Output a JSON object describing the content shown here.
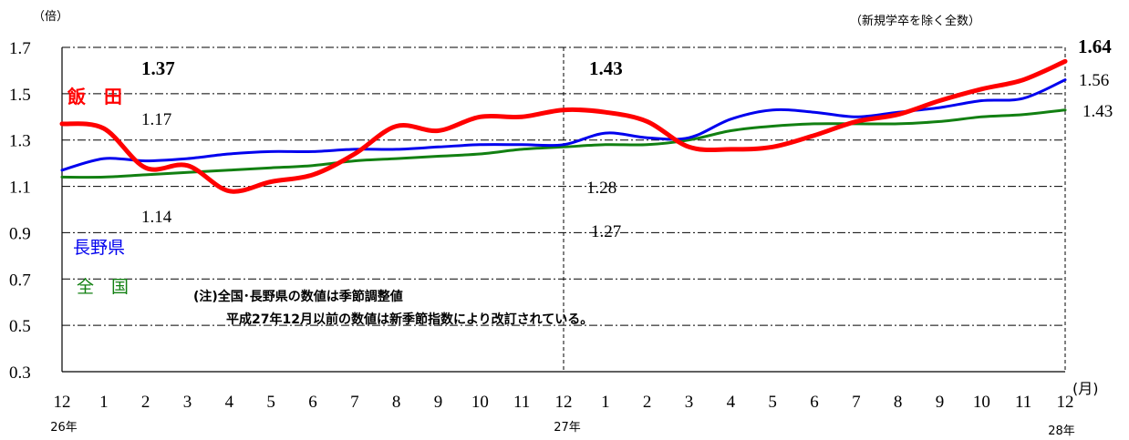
{
  "chart_data": {
    "type": "line",
    "y_unit": "（倍）",
    "note_top_right": "（新規学卒を除く全数）",
    "x_unit": "(月)",
    "ylim": [
      0.3,
      1.7
    ],
    "y_ticks": [
      "0.3",
      "0.5",
      "0.7",
      "0.9",
      "1.1",
      "1.3",
      "1.5",
      "1.7"
    ],
    "categories": [
      "12",
      "1",
      "2",
      "3",
      "4",
      "5",
      "6",
      "7",
      "8",
      "9",
      "10",
      "11",
      "12",
      "1",
      "2",
      "3",
      "4",
      "5",
      "6",
      "7",
      "8",
      "9",
      "10",
      "11",
      "12"
    ],
    "year_labels": [
      {
        "label": "26年",
        "index": 0
      },
      {
        "label": "27年",
        "index": 12
      },
      {
        "label": "28年",
        "index": 24
      }
    ],
    "grid": true,
    "series": [
      {
        "name": "飯　田",
        "color": "#ff0000",
        "values": [
          1.37,
          1.35,
          1.18,
          1.19,
          1.08,
          1.12,
          1.15,
          1.24,
          1.36,
          1.34,
          1.4,
          1.4,
          1.43,
          1.42,
          1.38,
          1.27,
          1.26,
          1.27,
          1.32,
          1.38,
          1.41,
          1.47,
          1.52,
          1.56,
          1.64
        ]
      },
      {
        "name": "長野県",
        "color": "#0000ee",
        "values": [
          1.17,
          1.22,
          1.21,
          1.22,
          1.24,
          1.25,
          1.25,
          1.26,
          1.26,
          1.27,
          1.28,
          1.28,
          1.28,
          1.33,
          1.31,
          1.31,
          1.39,
          1.43,
          1.42,
          1.4,
          1.42,
          1.44,
          1.47,
          1.48,
          1.56
        ]
      },
      {
        "name": "全　国",
        "color": "#128012",
        "values": [
          1.14,
          1.14,
          1.15,
          1.16,
          1.17,
          1.18,
          1.19,
          1.21,
          1.22,
          1.23,
          1.24,
          1.26,
          1.27,
          1.28,
          1.28,
          1.3,
          1.34,
          1.36,
          1.37,
          1.37,
          1.37,
          1.38,
          1.4,
          1.41,
          1.43
        ]
      }
    ],
    "data_labels": [
      {
        "text": "1.37",
        "series": 0,
        "index": 0,
        "bold": true
      },
      {
        "text": "1.17",
        "series": 1,
        "index": 0,
        "bold": false
      },
      {
        "text": "1.14",
        "series": 2,
        "index": 0,
        "bold": false
      },
      {
        "text": "1.43",
        "series": 0,
        "index": 12,
        "bold": true
      },
      {
        "text": "1.28",
        "series": 1,
        "index": 12,
        "bold": false
      },
      {
        "text": "1.27",
        "series": 2,
        "index": 12,
        "bold": false
      },
      {
        "text": "1.64",
        "series": 0,
        "index": 24,
        "bold": true
      },
      {
        "text": "1.56",
        "series": 1,
        "index": 24,
        "bold": false
      },
      {
        "text": "1.43",
        "series": 2,
        "index": 24,
        "bold": false
      }
    ],
    "annotation": {
      "line1": "(注)全国･長野県の数値は季節調整値",
      "line2": "平成27年12月以前の数値は新季節指数により改訂されている。"
    }
  }
}
